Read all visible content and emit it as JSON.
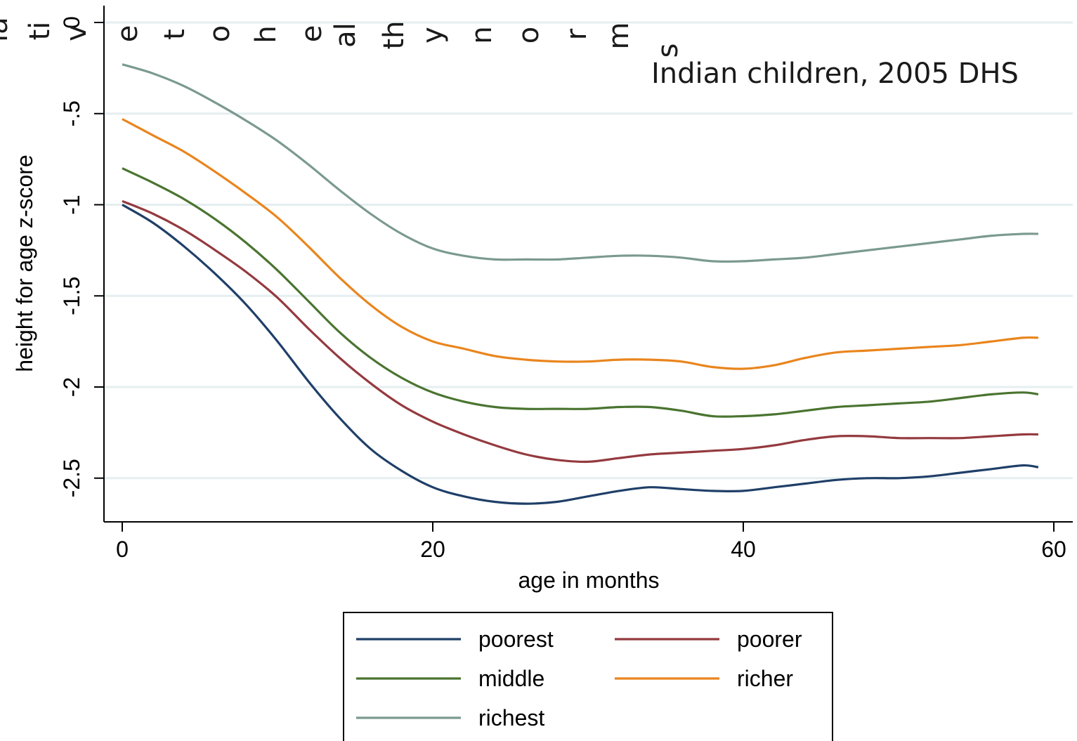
{
  "chart_data": {
    "type": "line",
    "title": "",
    "annotation": "Indian children, 2005 DHS",
    "overlay_letters": [
      "la",
      "ti",
      "v",
      "e",
      "t",
      "o",
      "h",
      "e",
      "al",
      "th",
      "y",
      "n",
      "o",
      "r",
      "m",
      "s"
    ],
    "xlabel": "age in months",
    "ylabel": "height for age z-score",
    "xlim": [
      -1,
      61
    ],
    "ylim": [
      -2.74,
      0.11
    ],
    "xticks": [
      0,
      20,
      40,
      60
    ],
    "xtick_labels": [
      "0",
      "20",
      "40",
      "60"
    ],
    "yticks": [
      0,
      -0.5,
      -1,
      -1.5,
      -2,
      -2.5
    ],
    "ytick_labels": [
      "0",
      "-.5",
      "-1",
      "-1.5",
      "-2",
      "-2.5"
    ],
    "grid": true,
    "legend_position": "bottom",
    "series": [
      {
        "name": "poorest",
        "color": "#1f3f68",
        "points": [
          [
            0,
            -1.0
          ],
          [
            2,
            -1.1
          ],
          [
            4,
            -1.23
          ],
          [
            6,
            -1.38
          ],
          [
            8,
            -1.55
          ],
          [
            10,
            -1.75
          ],
          [
            12,
            -1.97
          ],
          [
            14,
            -2.17
          ],
          [
            16,
            -2.34
          ],
          [
            18,
            -2.46
          ],
          [
            20,
            -2.55
          ],
          [
            22,
            -2.6
          ],
          [
            24,
            -2.63
          ],
          [
            26,
            -2.64
          ],
          [
            28,
            -2.63
          ],
          [
            30,
            -2.6
          ],
          [
            32,
            -2.57
          ],
          [
            34,
            -2.55
          ],
          [
            36,
            -2.56
          ],
          [
            38,
            -2.57
          ],
          [
            40,
            -2.57
          ],
          [
            42,
            -2.55
          ],
          [
            44,
            -2.53
          ],
          [
            46,
            -2.51
          ],
          [
            48,
            -2.5
          ],
          [
            50,
            -2.5
          ],
          [
            52,
            -2.49
          ],
          [
            54,
            -2.47
          ],
          [
            56,
            -2.45
          ],
          [
            58,
            -2.43
          ],
          [
            59,
            -2.44
          ]
        ]
      },
      {
        "name": "poorer",
        "color": "#943a3f",
        "points": [
          [
            0,
            -0.98
          ],
          [
            2,
            -1.05
          ],
          [
            4,
            -1.14
          ],
          [
            6,
            -1.25
          ],
          [
            8,
            -1.37
          ],
          [
            10,
            -1.51
          ],
          [
            12,
            -1.68
          ],
          [
            14,
            -1.84
          ],
          [
            16,
            -1.98
          ],
          [
            18,
            -2.1
          ],
          [
            20,
            -2.19
          ],
          [
            22,
            -2.26
          ],
          [
            24,
            -2.32
          ],
          [
            26,
            -2.37
          ],
          [
            28,
            -2.4
          ],
          [
            30,
            -2.41
          ],
          [
            32,
            -2.39
          ],
          [
            34,
            -2.37
          ],
          [
            36,
            -2.36
          ],
          [
            38,
            -2.35
          ],
          [
            40,
            -2.34
          ],
          [
            42,
            -2.32
          ],
          [
            44,
            -2.29
          ],
          [
            46,
            -2.27
          ],
          [
            48,
            -2.27
          ],
          [
            50,
            -2.28
          ],
          [
            52,
            -2.28
          ],
          [
            54,
            -2.28
          ],
          [
            56,
            -2.27
          ],
          [
            58,
            -2.26
          ],
          [
            59,
            -2.26
          ]
        ]
      },
      {
        "name": "middle",
        "color": "#4a7430",
        "points": [
          [
            0,
            -0.8
          ],
          [
            2,
            -0.88
          ],
          [
            4,
            -0.97
          ],
          [
            6,
            -1.08
          ],
          [
            8,
            -1.21
          ],
          [
            10,
            -1.36
          ],
          [
            12,
            -1.53
          ],
          [
            14,
            -1.7
          ],
          [
            16,
            -1.84
          ],
          [
            18,
            -1.95
          ],
          [
            20,
            -2.03
          ],
          [
            22,
            -2.08
          ],
          [
            24,
            -2.11
          ],
          [
            26,
            -2.12
          ],
          [
            28,
            -2.12
          ],
          [
            30,
            -2.12
          ],
          [
            32,
            -2.11
          ],
          [
            34,
            -2.11
          ],
          [
            36,
            -2.13
          ],
          [
            38,
            -2.16
          ],
          [
            40,
            -2.16
          ],
          [
            42,
            -2.15
          ],
          [
            44,
            -2.13
          ],
          [
            46,
            -2.11
          ],
          [
            48,
            -2.1
          ],
          [
            50,
            -2.09
          ],
          [
            52,
            -2.08
          ],
          [
            54,
            -2.06
          ],
          [
            56,
            -2.04
          ],
          [
            58,
            -2.03
          ],
          [
            59,
            -2.04
          ]
        ]
      },
      {
        "name": "richer",
        "color": "#e9851d",
        "points": [
          [
            0,
            -0.53
          ],
          [
            2,
            -0.62
          ],
          [
            4,
            -0.71
          ],
          [
            6,
            -0.82
          ],
          [
            8,
            -0.94
          ],
          [
            10,
            -1.07
          ],
          [
            12,
            -1.23
          ],
          [
            14,
            -1.4
          ],
          [
            16,
            -1.55
          ],
          [
            18,
            -1.67
          ],
          [
            20,
            -1.75
          ],
          [
            22,
            -1.79
          ],
          [
            24,
            -1.83
          ],
          [
            26,
            -1.85
          ],
          [
            28,
            -1.86
          ],
          [
            30,
            -1.86
          ],
          [
            32,
            -1.85
          ],
          [
            34,
            -1.85
          ],
          [
            36,
            -1.86
          ],
          [
            38,
            -1.89
          ],
          [
            40,
            -1.9
          ],
          [
            42,
            -1.88
          ],
          [
            44,
            -1.84
          ],
          [
            46,
            -1.81
          ],
          [
            48,
            -1.8
          ],
          [
            50,
            -1.79
          ],
          [
            52,
            -1.78
          ],
          [
            54,
            -1.77
          ],
          [
            56,
            -1.75
          ],
          [
            58,
            -1.73
          ],
          [
            59,
            -1.73
          ]
        ]
      },
      {
        "name": "richest",
        "color": "#7b9a8e",
        "points": [
          [
            0,
            -0.23
          ],
          [
            2,
            -0.28
          ],
          [
            4,
            -0.35
          ],
          [
            6,
            -0.44
          ],
          [
            8,
            -0.54
          ],
          [
            10,
            -0.65
          ],
          [
            12,
            -0.78
          ],
          [
            14,
            -0.92
          ],
          [
            16,
            -1.05
          ],
          [
            18,
            -1.16
          ],
          [
            20,
            -1.24
          ],
          [
            22,
            -1.28
          ],
          [
            24,
            -1.3
          ],
          [
            26,
            -1.3
          ],
          [
            28,
            -1.3
          ],
          [
            30,
            -1.29
          ],
          [
            32,
            -1.28
          ],
          [
            34,
            -1.28
          ],
          [
            36,
            -1.29
          ],
          [
            38,
            -1.31
          ],
          [
            40,
            -1.31
          ],
          [
            42,
            -1.3
          ],
          [
            44,
            -1.29
          ],
          [
            46,
            -1.27
          ],
          [
            48,
            -1.25
          ],
          [
            50,
            -1.23
          ],
          [
            52,
            -1.21
          ],
          [
            54,
            -1.19
          ],
          [
            56,
            -1.17
          ],
          [
            58,
            -1.16
          ],
          [
            59,
            -1.16
          ]
        ]
      }
    ]
  }
}
